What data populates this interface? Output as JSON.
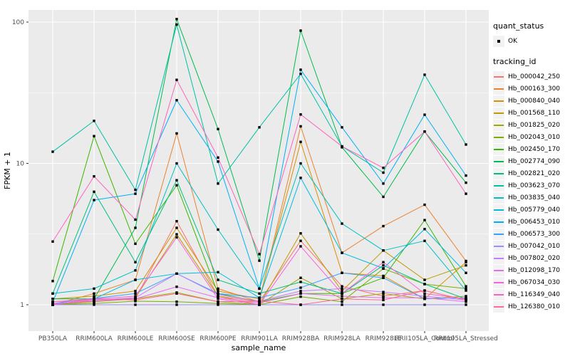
{
  "chart_data": {
    "type": "line",
    "title": "",
    "xlabel": "sample_name",
    "ylabel": "FPKM + 1",
    "yscale": "log10",
    "yticks": [
      1,
      10,
      100
    ],
    "ytick_labels": [
      "1",
      "10",
      "100"
    ],
    "ylim": [
      0.78,
      135
    ],
    "grid": "on",
    "panel_bg": "#EBEBEB",
    "grid_color": "#FFFFFF",
    "axis_text_color": "#4D4D4D",
    "point_color": "#000000",
    "legend_position": "right",
    "categories": [
      "PB350LA",
      "RRIM600LA",
      "RRIM600LE",
      "RRIM600SE",
      "RRIM600PE",
      "RRIM901LA",
      "RRIM928BA",
      "RRIM928LA",
      "RRIM928LE",
      "RRII105LA_Control",
      "RRII105LA_Stressed"
    ],
    "legend": {
      "quant_status_title": "quant_status",
      "quant_status_items": [
        "OK"
      ],
      "tracking_id_title": "tracking_id"
    },
    "series": [
      {
        "name": "Hb_000042_250",
        "color": "#F8766D",
        "values": [
          1.0,
          1.08,
          1.1,
          3.9,
          1.15,
          1.05,
          2.83,
          1.35,
          1.15,
          1.26,
          1.08
        ]
      },
      {
        "name": "Hb_000163_300",
        "color": "#EA8331",
        "values": [
          1.0,
          1.2,
          1.5,
          16.3,
          1.3,
          1.05,
          18.3,
          2.33,
          3.6,
          5.1,
          2.04
        ]
      },
      {
        "name": "Hb_000840_040",
        "color": "#D89000",
        "values": [
          1.1,
          1.15,
          1.25,
          3.5,
          1.25,
          1.1,
          14.2,
          1.68,
          1.6,
          1.1,
          2.0
        ]
      },
      {
        "name": "Hb_001568_110",
        "color": "#C09B00",
        "values": [
          1.0,
          1.05,
          1.12,
          3.15,
          1.15,
          1.0,
          3.2,
          1.25,
          2.42,
          1.5,
          1.9
        ]
      },
      {
        "name": "Hb_001825_020",
        "color": "#A3A500",
        "values": [
          1.0,
          1.05,
          1.1,
          1.22,
          1.05,
          1.0,
          1.55,
          1.1,
          1.2,
          1.1,
          1.15
        ]
      },
      {
        "name": "Hb_002043_010",
        "color": "#7CAE00",
        "values": [
          1.0,
          1.02,
          1.06,
          1.05,
          1.02,
          1.0,
          1.14,
          1.05,
          1.8,
          1.4,
          1.3
        ]
      },
      {
        "name": "Hb_002450_170",
        "color": "#39B600",
        "values": [
          1.47,
          15.6,
          2.7,
          7.0,
          1.2,
          1.05,
          1.2,
          1.2,
          1.55,
          3.97,
          1.35
        ]
      },
      {
        "name": "Hb_002774_090",
        "color": "#00BB4E",
        "values": [
          1.1,
          1.1,
          3.5,
          105,
          17.5,
          2.05,
          87,
          13.0,
          5.8,
          16.8,
          7.3
        ]
      },
      {
        "name": "Hb_002821_020",
        "color": "#00BF7D",
        "values": [
          1.2,
          6.3,
          2.0,
          7.6,
          1.5,
          1.2,
          1.45,
          1.2,
          1.9,
          1.4,
          1.1
        ]
      },
      {
        "name": "Hb_003623_070",
        "color": "#00C1A3",
        "values": [
          12.1,
          20.0,
          6.5,
          96,
          7.2,
          18.0,
          43,
          13.2,
          8.6,
          42.4,
          13.6
        ]
      },
      {
        "name": "Hb_003835_040",
        "color": "#00BFC4",
        "values": [
          1.2,
          1.3,
          1.75,
          10.0,
          3.4,
          1.3,
          10.0,
          3.75,
          2.42,
          2.83,
          1.26
        ]
      },
      {
        "name": "Hb_005779_040",
        "color": "#00BAE0",
        "values": [
          1.0,
          1.1,
          1.5,
          1.66,
          1.7,
          1.12,
          7.9,
          2.33,
          1.81,
          3.43,
          1.68
        ]
      },
      {
        "name": "Hb_006453_010",
        "color": "#00B0F6",
        "values": [
          1.04,
          5.5,
          6.1,
          28.0,
          10.3,
          1.3,
          46,
          18.0,
          7.2,
          22.1,
          8.2
        ]
      },
      {
        "name": "Hb_006573_300",
        "color": "#35A2FF",
        "values": [
          1.02,
          1.11,
          1.2,
          1.66,
          1.2,
          1.12,
          1.32,
          1.68,
          1.55,
          1.1,
          1.12
        ]
      },
      {
        "name": "Hb_007042_010",
        "color": "#9590FF",
        "values": [
          1.0,
          1.0,
          1.0,
          1.0,
          1.0,
          1.0,
          1.0,
          1.0,
          1.0,
          1.0,
          1.0
        ]
      },
      {
        "name": "Hb_007802_020",
        "color": "#C77CFF",
        "values": [
          1.05,
          1.08,
          1.12,
          1.66,
          1.18,
          1.06,
          1.25,
          1.3,
          1.23,
          1.15,
          1.08
        ]
      },
      {
        "name": "Hb_012098_170",
        "color": "#E76BF3",
        "values": [
          1.02,
          1.06,
          1.1,
          1.34,
          1.12,
          1.03,
          1.2,
          1.15,
          1.12,
          1.12,
          1.05
        ]
      },
      {
        "name": "Hb_067034_030",
        "color": "#FA62DB",
        "values": [
          1.0,
          1.1,
          1.15,
          3.0,
          1.1,
          1.0,
          2.59,
          1.2,
          2.0,
          1.2,
          1.1
        ]
      },
      {
        "name": "Hb_116349_040",
        "color": "#FF62BC",
        "values": [
          2.8,
          8.1,
          4.0,
          39.0,
          11.0,
          2.28,
          22.2,
          13.2,
          9.3,
          16.8,
          6.1
        ]
      },
      {
        "name": "Hb_126380_010",
        "color": "#FF6A98",
        "values": [
          1.05,
          1.1,
          1.08,
          1.2,
          1.05,
          1.06,
          1.0,
          1.1,
          1.08,
          1.26,
          1.08
        ]
      }
    ]
  }
}
